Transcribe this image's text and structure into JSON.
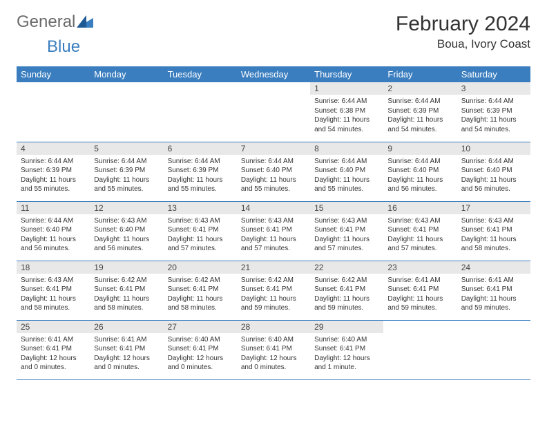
{
  "brand": {
    "part1": "General",
    "part2": "Blue"
  },
  "title": "February 2024",
  "location": "Boua, Ivory Coast",
  "colors": {
    "header_bg": "#3a7ebf",
    "header_text": "#ffffff",
    "daynum_bg": "#e8e8e8",
    "row_divider": "#3a7ebf",
    "brand_gray": "#6a6a6a",
    "brand_blue": "#3a7ebf"
  },
  "typography": {
    "title_fontsize": 30,
    "location_fontsize": 17,
    "header_fontsize": 13,
    "daynum_fontsize": 12,
    "info_fontsize": 10
  },
  "day_headers": [
    "Sunday",
    "Monday",
    "Tuesday",
    "Wednesday",
    "Thursday",
    "Friday",
    "Saturday"
  ],
  "weeks": [
    [
      {
        "day": "",
        "sunrise": "",
        "sunset": "",
        "daylight": ""
      },
      {
        "day": "",
        "sunrise": "",
        "sunset": "",
        "daylight": ""
      },
      {
        "day": "",
        "sunrise": "",
        "sunset": "",
        "daylight": ""
      },
      {
        "day": "",
        "sunrise": "",
        "sunset": "",
        "daylight": ""
      },
      {
        "day": "1",
        "sunrise": "Sunrise: 6:44 AM",
        "sunset": "Sunset: 6:38 PM",
        "daylight": "Daylight: 11 hours and 54 minutes."
      },
      {
        "day": "2",
        "sunrise": "Sunrise: 6:44 AM",
        "sunset": "Sunset: 6:39 PM",
        "daylight": "Daylight: 11 hours and 54 minutes."
      },
      {
        "day": "3",
        "sunrise": "Sunrise: 6:44 AM",
        "sunset": "Sunset: 6:39 PM",
        "daylight": "Daylight: 11 hours and 54 minutes."
      }
    ],
    [
      {
        "day": "4",
        "sunrise": "Sunrise: 6:44 AM",
        "sunset": "Sunset: 6:39 PM",
        "daylight": "Daylight: 11 hours and 55 minutes."
      },
      {
        "day": "5",
        "sunrise": "Sunrise: 6:44 AM",
        "sunset": "Sunset: 6:39 PM",
        "daylight": "Daylight: 11 hours and 55 minutes."
      },
      {
        "day": "6",
        "sunrise": "Sunrise: 6:44 AM",
        "sunset": "Sunset: 6:39 PM",
        "daylight": "Daylight: 11 hours and 55 minutes."
      },
      {
        "day": "7",
        "sunrise": "Sunrise: 6:44 AM",
        "sunset": "Sunset: 6:40 PM",
        "daylight": "Daylight: 11 hours and 55 minutes."
      },
      {
        "day": "8",
        "sunrise": "Sunrise: 6:44 AM",
        "sunset": "Sunset: 6:40 PM",
        "daylight": "Daylight: 11 hours and 55 minutes."
      },
      {
        "day": "9",
        "sunrise": "Sunrise: 6:44 AM",
        "sunset": "Sunset: 6:40 PM",
        "daylight": "Daylight: 11 hours and 56 minutes."
      },
      {
        "day": "10",
        "sunrise": "Sunrise: 6:44 AM",
        "sunset": "Sunset: 6:40 PM",
        "daylight": "Daylight: 11 hours and 56 minutes."
      }
    ],
    [
      {
        "day": "11",
        "sunrise": "Sunrise: 6:44 AM",
        "sunset": "Sunset: 6:40 PM",
        "daylight": "Daylight: 11 hours and 56 minutes."
      },
      {
        "day": "12",
        "sunrise": "Sunrise: 6:43 AM",
        "sunset": "Sunset: 6:40 PM",
        "daylight": "Daylight: 11 hours and 56 minutes."
      },
      {
        "day": "13",
        "sunrise": "Sunrise: 6:43 AM",
        "sunset": "Sunset: 6:41 PM",
        "daylight": "Daylight: 11 hours and 57 minutes."
      },
      {
        "day": "14",
        "sunrise": "Sunrise: 6:43 AM",
        "sunset": "Sunset: 6:41 PM",
        "daylight": "Daylight: 11 hours and 57 minutes."
      },
      {
        "day": "15",
        "sunrise": "Sunrise: 6:43 AM",
        "sunset": "Sunset: 6:41 PM",
        "daylight": "Daylight: 11 hours and 57 minutes."
      },
      {
        "day": "16",
        "sunrise": "Sunrise: 6:43 AM",
        "sunset": "Sunset: 6:41 PM",
        "daylight": "Daylight: 11 hours and 57 minutes."
      },
      {
        "day": "17",
        "sunrise": "Sunrise: 6:43 AM",
        "sunset": "Sunset: 6:41 PM",
        "daylight": "Daylight: 11 hours and 58 minutes."
      }
    ],
    [
      {
        "day": "18",
        "sunrise": "Sunrise: 6:43 AM",
        "sunset": "Sunset: 6:41 PM",
        "daylight": "Daylight: 11 hours and 58 minutes."
      },
      {
        "day": "19",
        "sunrise": "Sunrise: 6:42 AM",
        "sunset": "Sunset: 6:41 PM",
        "daylight": "Daylight: 11 hours and 58 minutes."
      },
      {
        "day": "20",
        "sunrise": "Sunrise: 6:42 AM",
        "sunset": "Sunset: 6:41 PM",
        "daylight": "Daylight: 11 hours and 58 minutes."
      },
      {
        "day": "21",
        "sunrise": "Sunrise: 6:42 AM",
        "sunset": "Sunset: 6:41 PM",
        "daylight": "Daylight: 11 hours and 59 minutes."
      },
      {
        "day": "22",
        "sunrise": "Sunrise: 6:42 AM",
        "sunset": "Sunset: 6:41 PM",
        "daylight": "Daylight: 11 hours and 59 minutes."
      },
      {
        "day": "23",
        "sunrise": "Sunrise: 6:41 AM",
        "sunset": "Sunset: 6:41 PM",
        "daylight": "Daylight: 11 hours and 59 minutes."
      },
      {
        "day": "24",
        "sunrise": "Sunrise: 6:41 AM",
        "sunset": "Sunset: 6:41 PM",
        "daylight": "Daylight: 11 hours and 59 minutes."
      }
    ],
    [
      {
        "day": "25",
        "sunrise": "Sunrise: 6:41 AM",
        "sunset": "Sunset: 6:41 PM",
        "daylight": "Daylight: 12 hours and 0 minutes."
      },
      {
        "day": "26",
        "sunrise": "Sunrise: 6:41 AM",
        "sunset": "Sunset: 6:41 PM",
        "daylight": "Daylight: 12 hours and 0 minutes."
      },
      {
        "day": "27",
        "sunrise": "Sunrise: 6:40 AM",
        "sunset": "Sunset: 6:41 PM",
        "daylight": "Daylight: 12 hours and 0 minutes."
      },
      {
        "day": "28",
        "sunrise": "Sunrise: 6:40 AM",
        "sunset": "Sunset: 6:41 PM",
        "daylight": "Daylight: 12 hours and 0 minutes."
      },
      {
        "day": "29",
        "sunrise": "Sunrise: 6:40 AM",
        "sunset": "Sunset: 6:41 PM",
        "daylight": "Daylight: 12 hours and 1 minute."
      },
      {
        "day": "",
        "sunrise": "",
        "sunset": "",
        "daylight": ""
      },
      {
        "day": "",
        "sunrise": "",
        "sunset": "",
        "daylight": ""
      }
    ]
  ]
}
